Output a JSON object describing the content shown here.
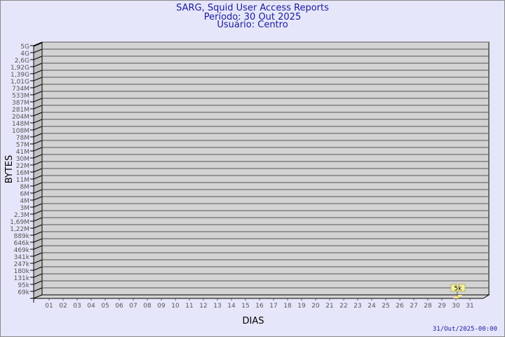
{
  "chart_data": {
    "type": "bar",
    "title": [
      "SARG, Squid User Access Reports",
      "Período: 30 Out 2025",
      "Usuário: Centro"
    ],
    "xlabel": "DIAS",
    "ylabel": "BYTES",
    "y_scale": "log",
    "y_ticks": [
      "5G",
      "4G",
      "2,6G",
      "1,92G",
      "1,39G",
      "1,01G",
      "734M",
      "533M",
      "387M",
      "281M",
      "204M",
      "148M",
      "108M",
      "78M",
      "57M",
      "41M",
      "30M",
      "22M",
      "16M",
      "11M",
      "8M",
      "6M",
      "4M",
      "3M",
      "2,3M",
      "1,69M",
      "1,22M",
      "889k",
      "646k",
      "469k",
      "341k",
      "247k",
      "180k",
      "131k",
      "95k",
      "69k"
    ],
    "categories": [
      "01",
      "02",
      "03",
      "04",
      "05",
      "06",
      "07",
      "08",
      "09",
      "10",
      "11",
      "12",
      "13",
      "14",
      "15",
      "16",
      "17",
      "18",
      "19",
      "20",
      "21",
      "22",
      "23",
      "24",
      "25",
      "26",
      "27",
      "28",
      "29",
      "30",
      "31"
    ],
    "bars": [
      {
        "category": "30",
        "value": 5000,
        "label": "5k"
      }
    ],
    "grid": true,
    "footer": "31/Out/2025-00:00",
    "colors": {
      "background": "#e6e6fa",
      "plot": "#d3d3d3",
      "side": "#c0c0c0",
      "bar": "#ffe080",
      "text": "#1a1aa0",
      "tick_text": "#555555"
    }
  }
}
